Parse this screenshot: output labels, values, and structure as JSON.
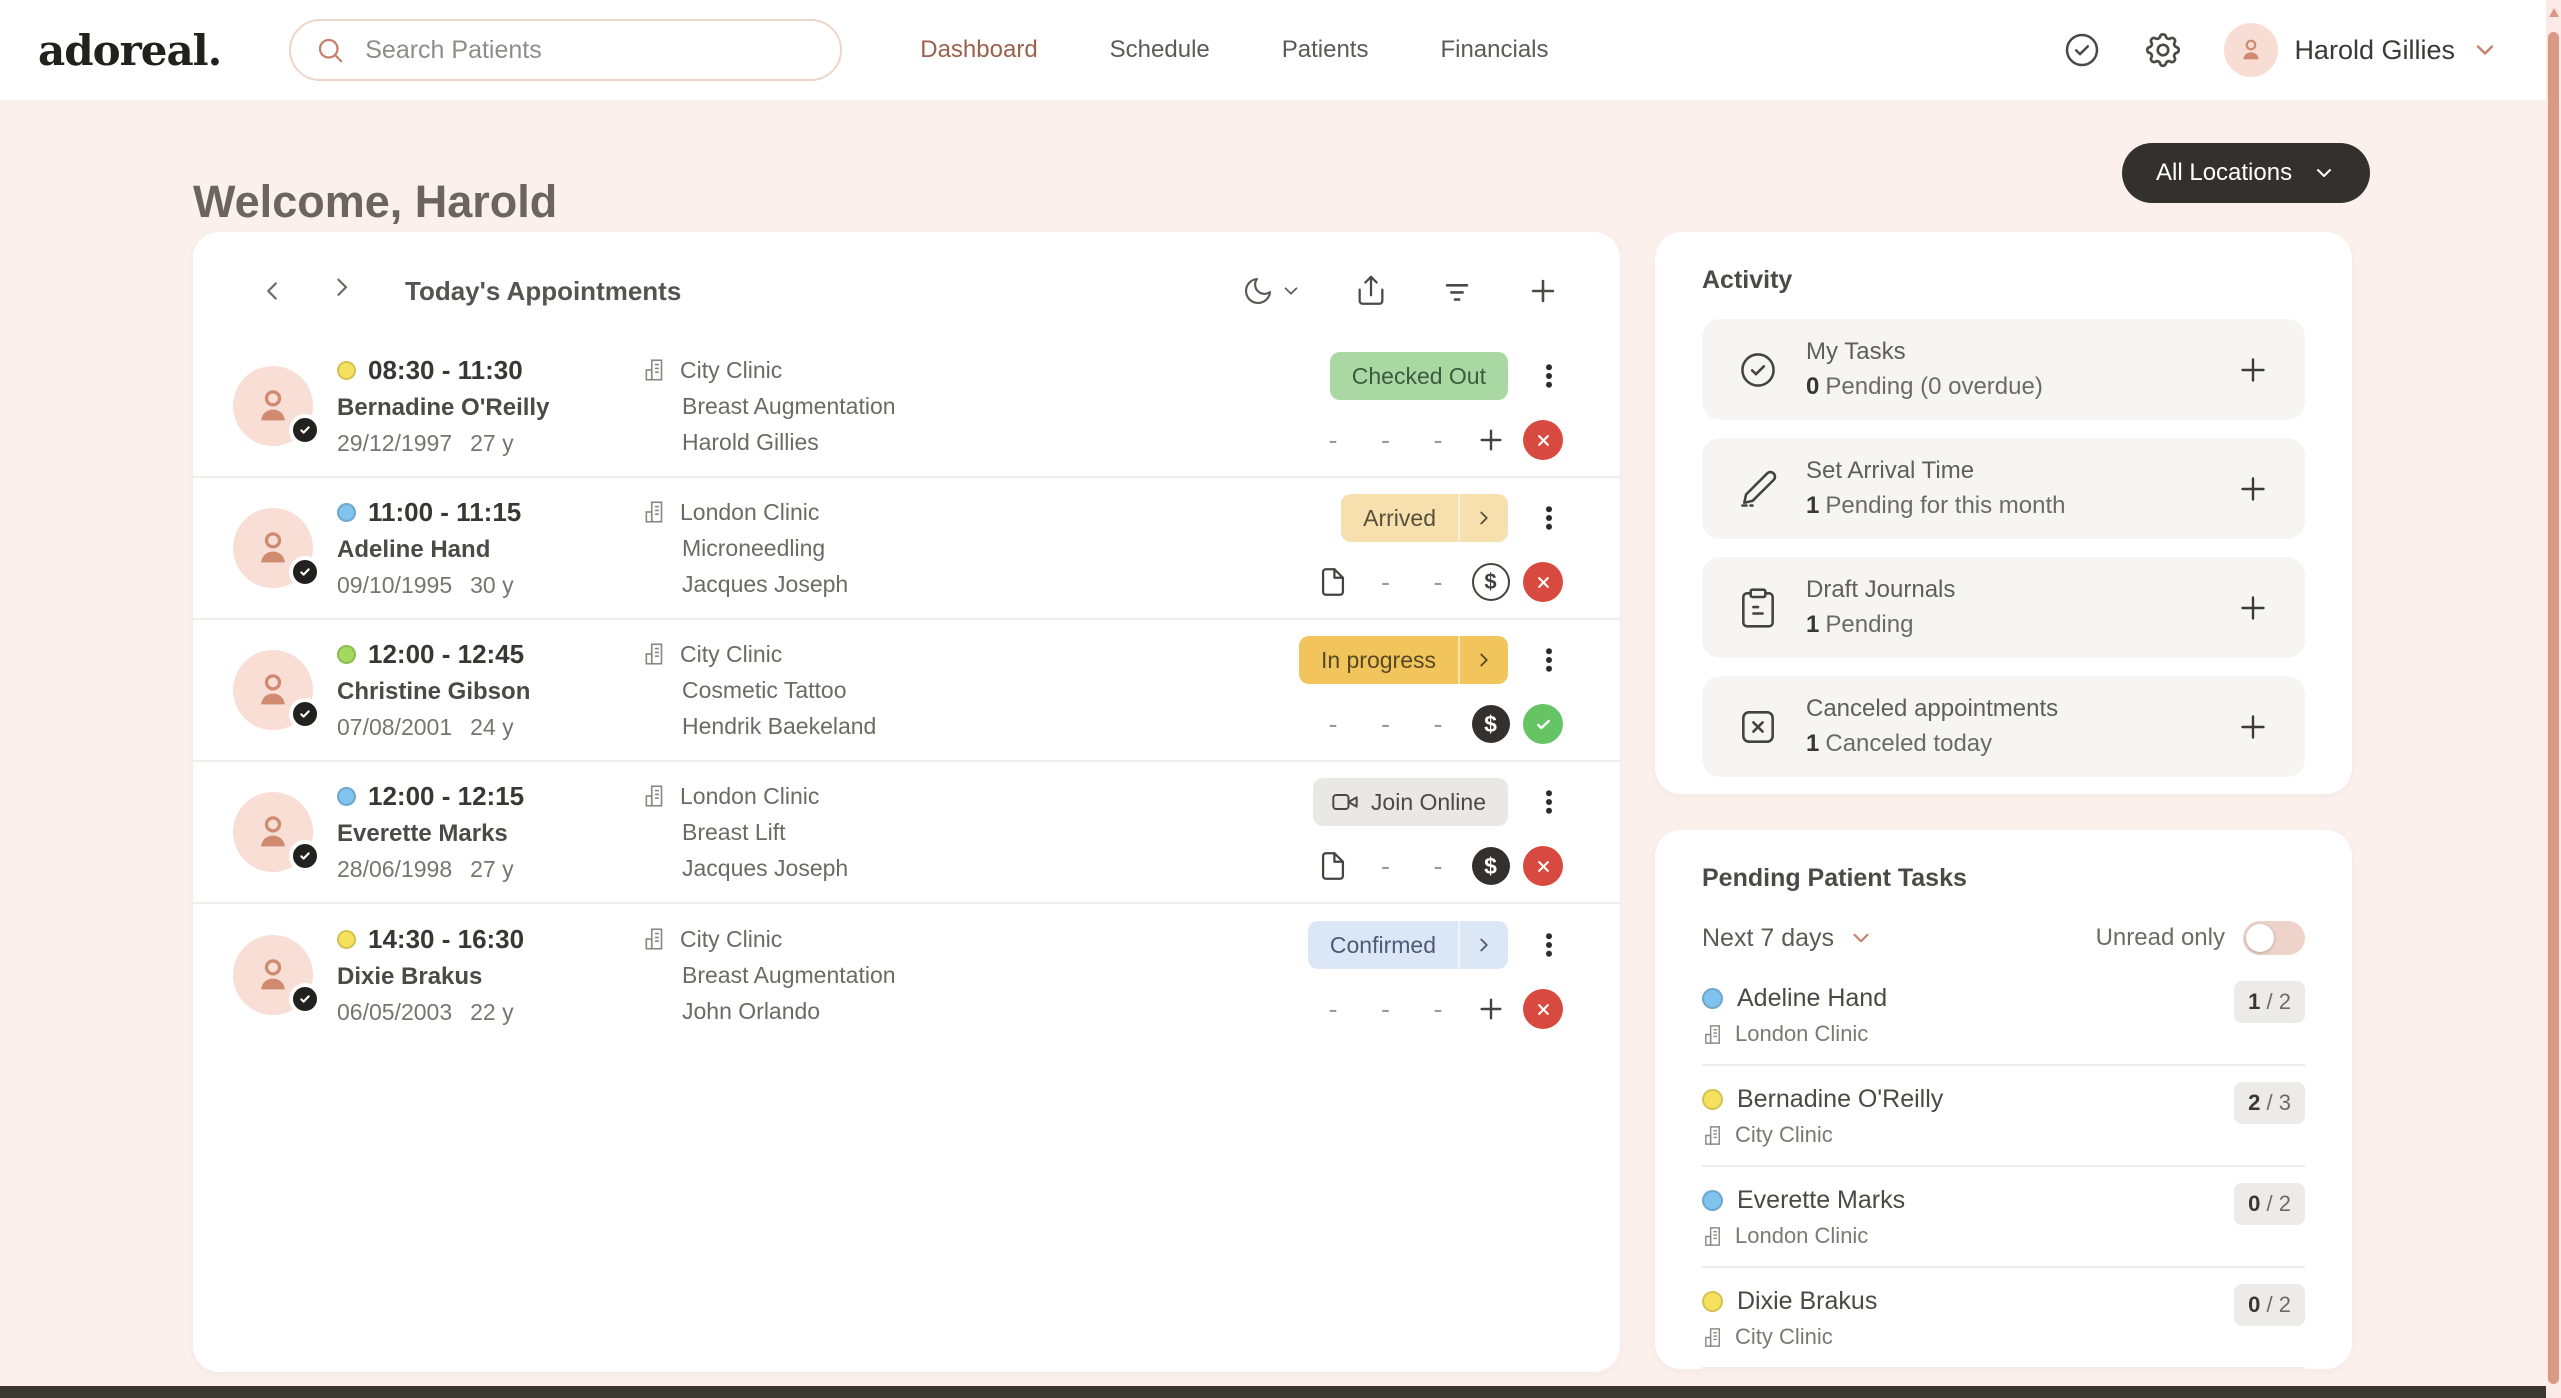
{
  "colors": {
    "accent_rose": "#c9806b",
    "page_bg": "#fbf0ec",
    "dark_button": "#34302d",
    "status_yellow": "#f6e15e",
    "status_blue": "#7fc3ee",
    "status_green": "#a2d95e",
    "cancel_red": "#d84a40",
    "done_green": "#67c465"
  },
  "header": {
    "logo": "adoreal.",
    "search_placeholder": "Search Patients",
    "nav": [
      {
        "label": "Dashboard",
        "active": true
      },
      {
        "label": "Schedule",
        "active": false
      },
      {
        "label": "Patients",
        "active": false
      },
      {
        "label": "Financials",
        "active": false
      }
    ],
    "user_name": "Harold Gillies"
  },
  "page": {
    "welcome_title": "Welcome, Harold",
    "locations_button_label": "All Locations"
  },
  "appointments": {
    "title": "Today's Appointments",
    "rows": [
      {
        "dot": "yellow",
        "time": "08:30 - 11:30",
        "patient": "Bernadine O'Reilly",
        "birth_date": "29/12/1997",
        "age": "27 y",
        "clinic": "City Clinic",
        "treatment": "Breast Augmentation",
        "practitioner": "Harold Gillies",
        "status": {
          "label": "Checked Out",
          "variant": "checked-out",
          "chevron": false,
          "video": false
        },
        "actions": [
          "dash",
          "dash",
          "dash",
          "plus",
          "cancel"
        ],
        "checked_in": false
      },
      {
        "dot": "blue",
        "time": "11:00 - 11:15",
        "patient": "Adeline Hand",
        "birth_date": "09/10/1995",
        "age": "30 y",
        "clinic": "London Clinic",
        "treatment": "Microneedling",
        "practitioner": "Jacques Joseph",
        "status": {
          "label": "Arrived",
          "variant": "arrived",
          "chevron": true,
          "video": false
        },
        "actions": [
          "doc",
          "dash",
          "dash",
          "dollar-outline",
          "cancel"
        ],
        "checked_in": false
      },
      {
        "dot": "green",
        "time": "12:00 - 12:45",
        "patient": "Christine Gibson",
        "birth_date": "07/08/2001",
        "age": "24 y",
        "clinic": "City Clinic",
        "treatment": "Cosmetic Tattoo",
        "practitioner": "Hendrik Baekeland",
        "status": {
          "label": "In progress",
          "variant": "in-progress",
          "chevron": true,
          "video": false
        },
        "actions": [
          "dash",
          "dash",
          "dash",
          "dollar-filled",
          "done"
        ],
        "checked_in": true
      },
      {
        "dot": "blue",
        "time": "12:00 - 12:15",
        "patient": "Everette Marks",
        "birth_date": "28/06/1998",
        "age": "27 y",
        "clinic": "London Clinic",
        "treatment": "Breast Lift",
        "practitioner": "Jacques Joseph",
        "status": {
          "label": "Join Online",
          "variant": "join-online",
          "chevron": false,
          "video": true
        },
        "actions": [
          "doc",
          "dash",
          "dash",
          "dollar-filled",
          "cancel"
        ],
        "checked_in": false
      },
      {
        "dot": "yellow",
        "time": "14:30 - 16:30",
        "patient": "Dixie Brakus",
        "birth_date": "06/05/2003",
        "age": "22 y",
        "clinic": "City Clinic",
        "treatment": "Breast Augmentation",
        "practitioner": "John Orlando",
        "status": {
          "label": "Confirmed",
          "variant": "confirmed",
          "chevron": true,
          "video": false
        },
        "actions": [
          "dash",
          "dash",
          "dash",
          "plus",
          "cancel"
        ],
        "checked_in": false
      }
    ]
  },
  "activity": {
    "title": "Activity",
    "items": [
      {
        "icon": "task-check-circle-icon",
        "title": "My Tasks",
        "strong": "0",
        "rest": "Pending  (0 overdue)",
        "add_button": true
      },
      {
        "icon": "scalpel-icon",
        "title": "Set Arrival Time",
        "strong": "1",
        "rest": "Pending for this month",
        "add_button": false
      },
      {
        "icon": "journal-clipboard-icon",
        "title": "Draft Journals",
        "strong": "1",
        "rest": "Pending",
        "add_button": false
      },
      {
        "icon": "canceled-square-icon",
        "title": "Canceled appointments",
        "strong": "1",
        "rest": "Canceled today",
        "add_button": false
      }
    ]
  },
  "pending_tasks": {
    "title": "Pending Patient Tasks",
    "range_label": "Next 7 days",
    "unread_label": "Unread only",
    "unread_on": false,
    "items": [
      {
        "dot": "blue",
        "name": "Adeline Hand",
        "clinic": "London Clinic",
        "done": "1",
        "total": "2"
      },
      {
        "dot": "yellow",
        "name": "Bernadine O'Reilly",
        "clinic": "City Clinic",
        "done": "2",
        "total": "3"
      },
      {
        "dot": "blue",
        "name": "Everette Marks",
        "clinic": "London Clinic",
        "done": "0",
        "total": "2"
      },
      {
        "dot": "yellow",
        "name": "Dixie Brakus",
        "clinic": "City Clinic",
        "done": "0",
        "total": "2"
      }
    ]
  }
}
